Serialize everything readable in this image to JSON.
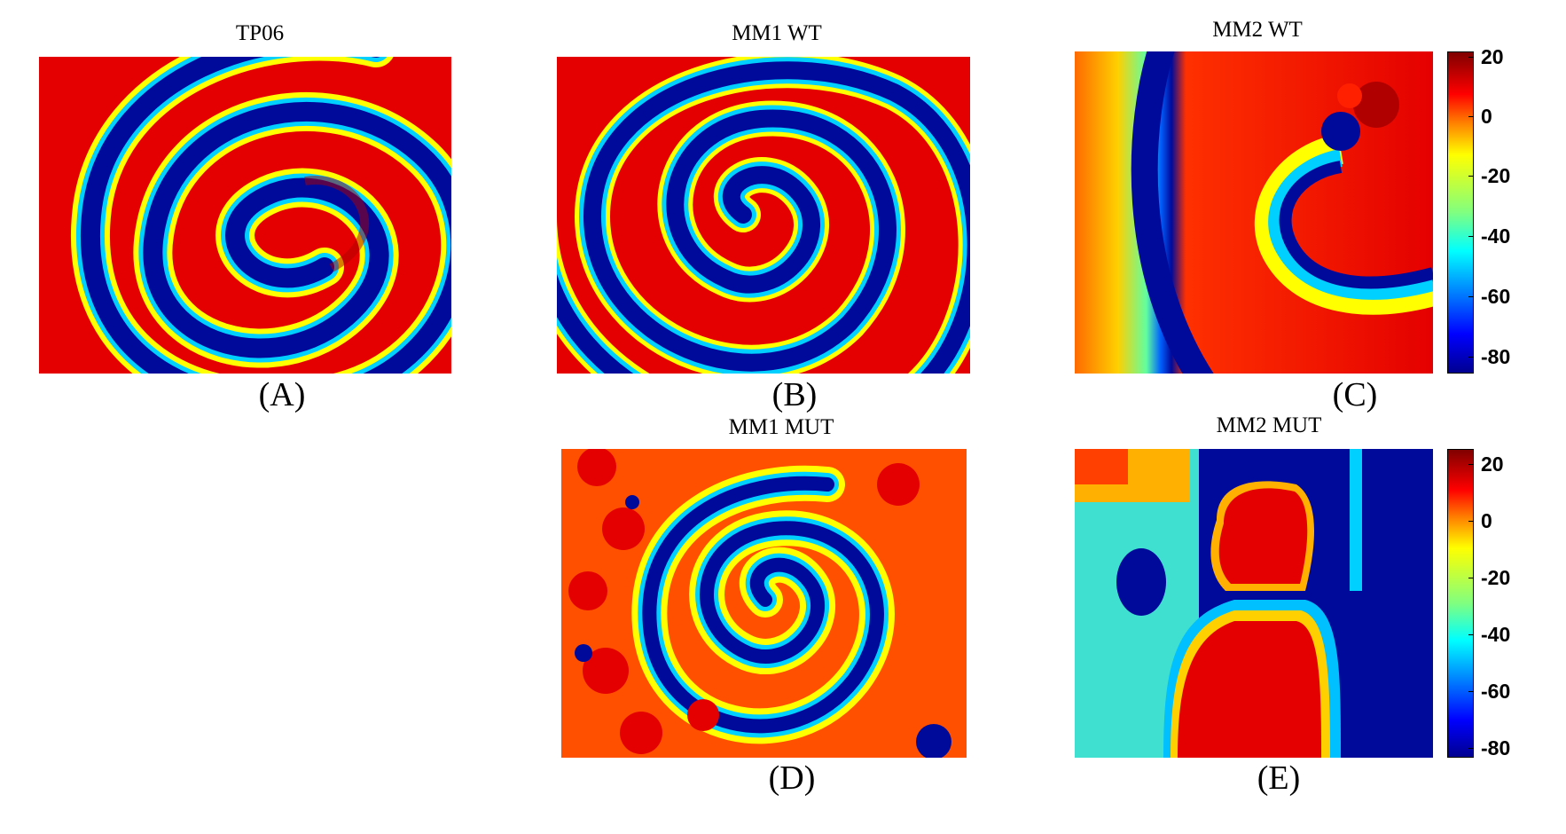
{
  "panels": {
    "a": {
      "title": "TP06",
      "label": "(A)"
    },
    "b": {
      "title": "MM1 WT",
      "label": "(B)"
    },
    "c": {
      "title": "MM2 WT",
      "label": "(C)"
    },
    "d": {
      "title": "MM1 MUT",
      "label": "(D)"
    },
    "e": {
      "title": "MM2 MUT",
      "label": "(E)"
    }
  },
  "colorbar_top": {
    "ticks": [
      "20",
      "0",
      "-20",
      "-40",
      "-60",
      "-80"
    ]
  },
  "colorbar_bottom": {
    "ticks": [
      "20",
      "0",
      "-20",
      "-40",
      "-60",
      "-80"
    ]
  },
  "colormap": [
    "#800000",
    "#ff0000",
    "#ff8000",
    "#ffff00",
    "#80ff80",
    "#00ffff",
    "#0080ff",
    "#0000ff",
    "#000090"
  ]
}
